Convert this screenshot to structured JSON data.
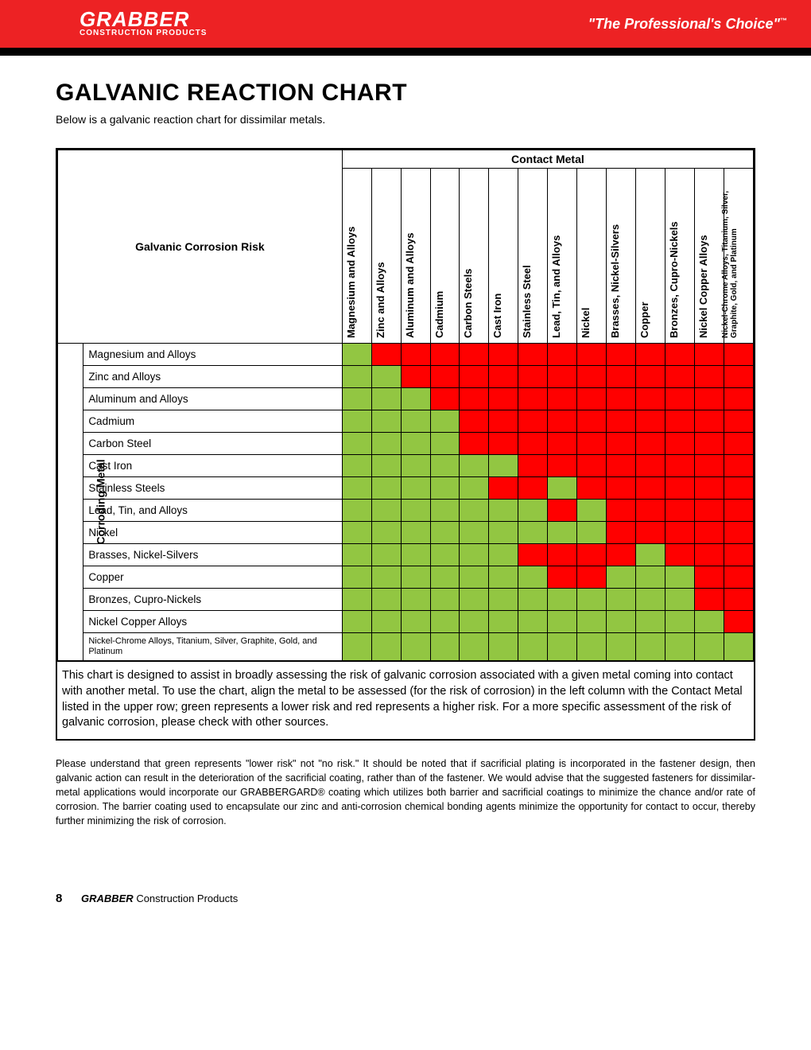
{
  "header": {
    "logo_main": "GRABBER",
    "logo_sub": "CONSTRUCTION PRODUCTS",
    "tagline": "\"The Professional's Choice\"",
    "tagline_mark": "™"
  },
  "page": {
    "title": "GALVANIC REACTION CHART",
    "subtitle": "Below is a galvanic reaction chart for dissimilar metals."
  },
  "chart": {
    "corner_label": "Galvanic Corrosion Risk",
    "contact_metal_label": "Contact Metal",
    "corroding_metal_label": "Corroding Metal",
    "columns": [
      "Magnesium and Alloys",
      "Zinc and Alloys",
      "Aluminum and Alloys",
      "Cadmium",
      "Carbon Steels",
      "Cast Iron",
      "Stainless Steel",
      "Lead, Tin, and Alloys",
      "Nickel",
      "Brasses, Nickel-Silvers",
      "Copper",
      "Bronzes, Cupro-Nickels",
      "Nickel Copper Alloys",
      "Nickel-Chrome Alloys, Titanium, Silver, Graphite, Gold, and Platinum"
    ],
    "rows": [
      {
        "label": "Magnesium and Alloys",
        "cells": [
          "G",
          "R",
          "R",
          "R",
          "R",
          "R",
          "R",
          "R",
          "R",
          "R",
          "R",
          "R",
          "R",
          "R"
        ]
      },
      {
        "label": "Zinc and Alloys",
        "cells": [
          "G",
          "G",
          "R",
          "R",
          "R",
          "R",
          "R",
          "R",
          "R",
          "R",
          "R",
          "R",
          "R",
          "R"
        ]
      },
      {
        "label": "Aluminum and Alloys",
        "cells": [
          "G",
          "G",
          "G",
          "R",
          "R",
          "R",
          "R",
          "R",
          "R",
          "R",
          "R",
          "R",
          "R",
          "R"
        ]
      },
      {
        "label": "Cadmium",
        "cells": [
          "G",
          "G",
          "G",
          "G",
          "R",
          "R",
          "R",
          "R",
          "R",
          "R",
          "R",
          "R",
          "R",
          "R"
        ]
      },
      {
        "label": "Carbon Steel",
        "cells": [
          "G",
          "G",
          "G",
          "G",
          "R",
          "R",
          "R",
          "R",
          "R",
          "R",
          "R",
          "R",
          "R",
          "R"
        ]
      },
      {
        "label": "Cast Iron",
        "cells": [
          "G",
          "G",
          "G",
          "G",
          "G",
          "G",
          "R",
          "R",
          "R",
          "R",
          "R",
          "R",
          "R",
          "R"
        ]
      },
      {
        "label": "Stainless Steels",
        "cells": [
          "G",
          "G",
          "G",
          "G",
          "G",
          "R",
          "R",
          "G",
          "R",
          "R",
          "R",
          "R",
          "R",
          "R"
        ]
      },
      {
        "label": "Lead, Tin, and Alloys",
        "cells": [
          "G",
          "G",
          "G",
          "G",
          "G",
          "G",
          "G",
          "R",
          "G",
          "R",
          "R",
          "R",
          "R",
          "R"
        ]
      },
      {
        "label": "Nickel",
        "cells": [
          "G",
          "G",
          "G",
          "G",
          "G",
          "G",
          "G",
          "G",
          "G",
          "R",
          "R",
          "R",
          "R",
          "R"
        ]
      },
      {
        "label": "Brasses, Nickel-Silvers",
        "cells": [
          "G",
          "G",
          "G",
          "G",
          "G",
          "G",
          "R",
          "R",
          "R",
          "R",
          "G",
          "R",
          "R",
          "R"
        ]
      },
      {
        "label": "Copper",
        "cells": [
          "G",
          "G",
          "G",
          "G",
          "G",
          "G",
          "G",
          "R",
          "R",
          "G",
          "G",
          "G",
          "R",
          "R"
        ]
      },
      {
        "label": "Bronzes, Cupro-Nickels",
        "cells": [
          "G",
          "G",
          "G",
          "G",
          "G",
          "G",
          "G",
          "G",
          "G",
          "G",
          "G",
          "G",
          "R",
          "R"
        ]
      },
      {
        "label": "Nickel Copper Alloys",
        "cells": [
          "G",
          "G",
          "G",
          "G",
          "G",
          "G",
          "G",
          "G",
          "G",
          "G",
          "G",
          "G",
          "G",
          "R"
        ]
      },
      {
        "label": "Nickel-Chrome Alloys, Titanium, Silver, Graphite, Gold, and Platinum",
        "small": true,
        "cells": [
          "G",
          "G",
          "G",
          "G",
          "G",
          "G",
          "G",
          "G",
          "G",
          "G",
          "G",
          "G",
          "G",
          "G"
        ]
      }
    ],
    "colors": {
      "G": "#92c642",
      "R": "#ff0000"
    },
    "explain": "This chart is designed to assist in broadly assessing the risk of galvanic corrosion associated with a given metal coming into contact with another metal. To use the chart, align the metal to be assessed (for the risk of corrosion) in the left column with the Contact Metal listed in the upper row; green represents a lower risk and red represents a higher risk. For a more specific assessment of the risk of galvanic corrosion, please check with other sources."
  },
  "footnote": "Please understand that green represents \"lower risk\" not \"no risk.\" It should be noted that if sacrificial plating is incorporated in the fastener design, then galvanic action can result in the deterioration of the sacrificial coating, rather than of the fastener. We would advise that the suggested fasteners for dissimilar-metal applications would incorporate our GRABBERGARD® coating which utilizes both barrier and sacrificial coatings to minimize the chance and/or rate of corrosion. The barrier coating used to encapsulate our zinc and anti-corrosion chemical bonding agents minimize the opportunity for contact to occur, thereby further minimizing the risk of corrosion.",
  "footer": {
    "page_num": "8",
    "brand": "GRABBER",
    "brand_suffix": " Construction Products"
  }
}
